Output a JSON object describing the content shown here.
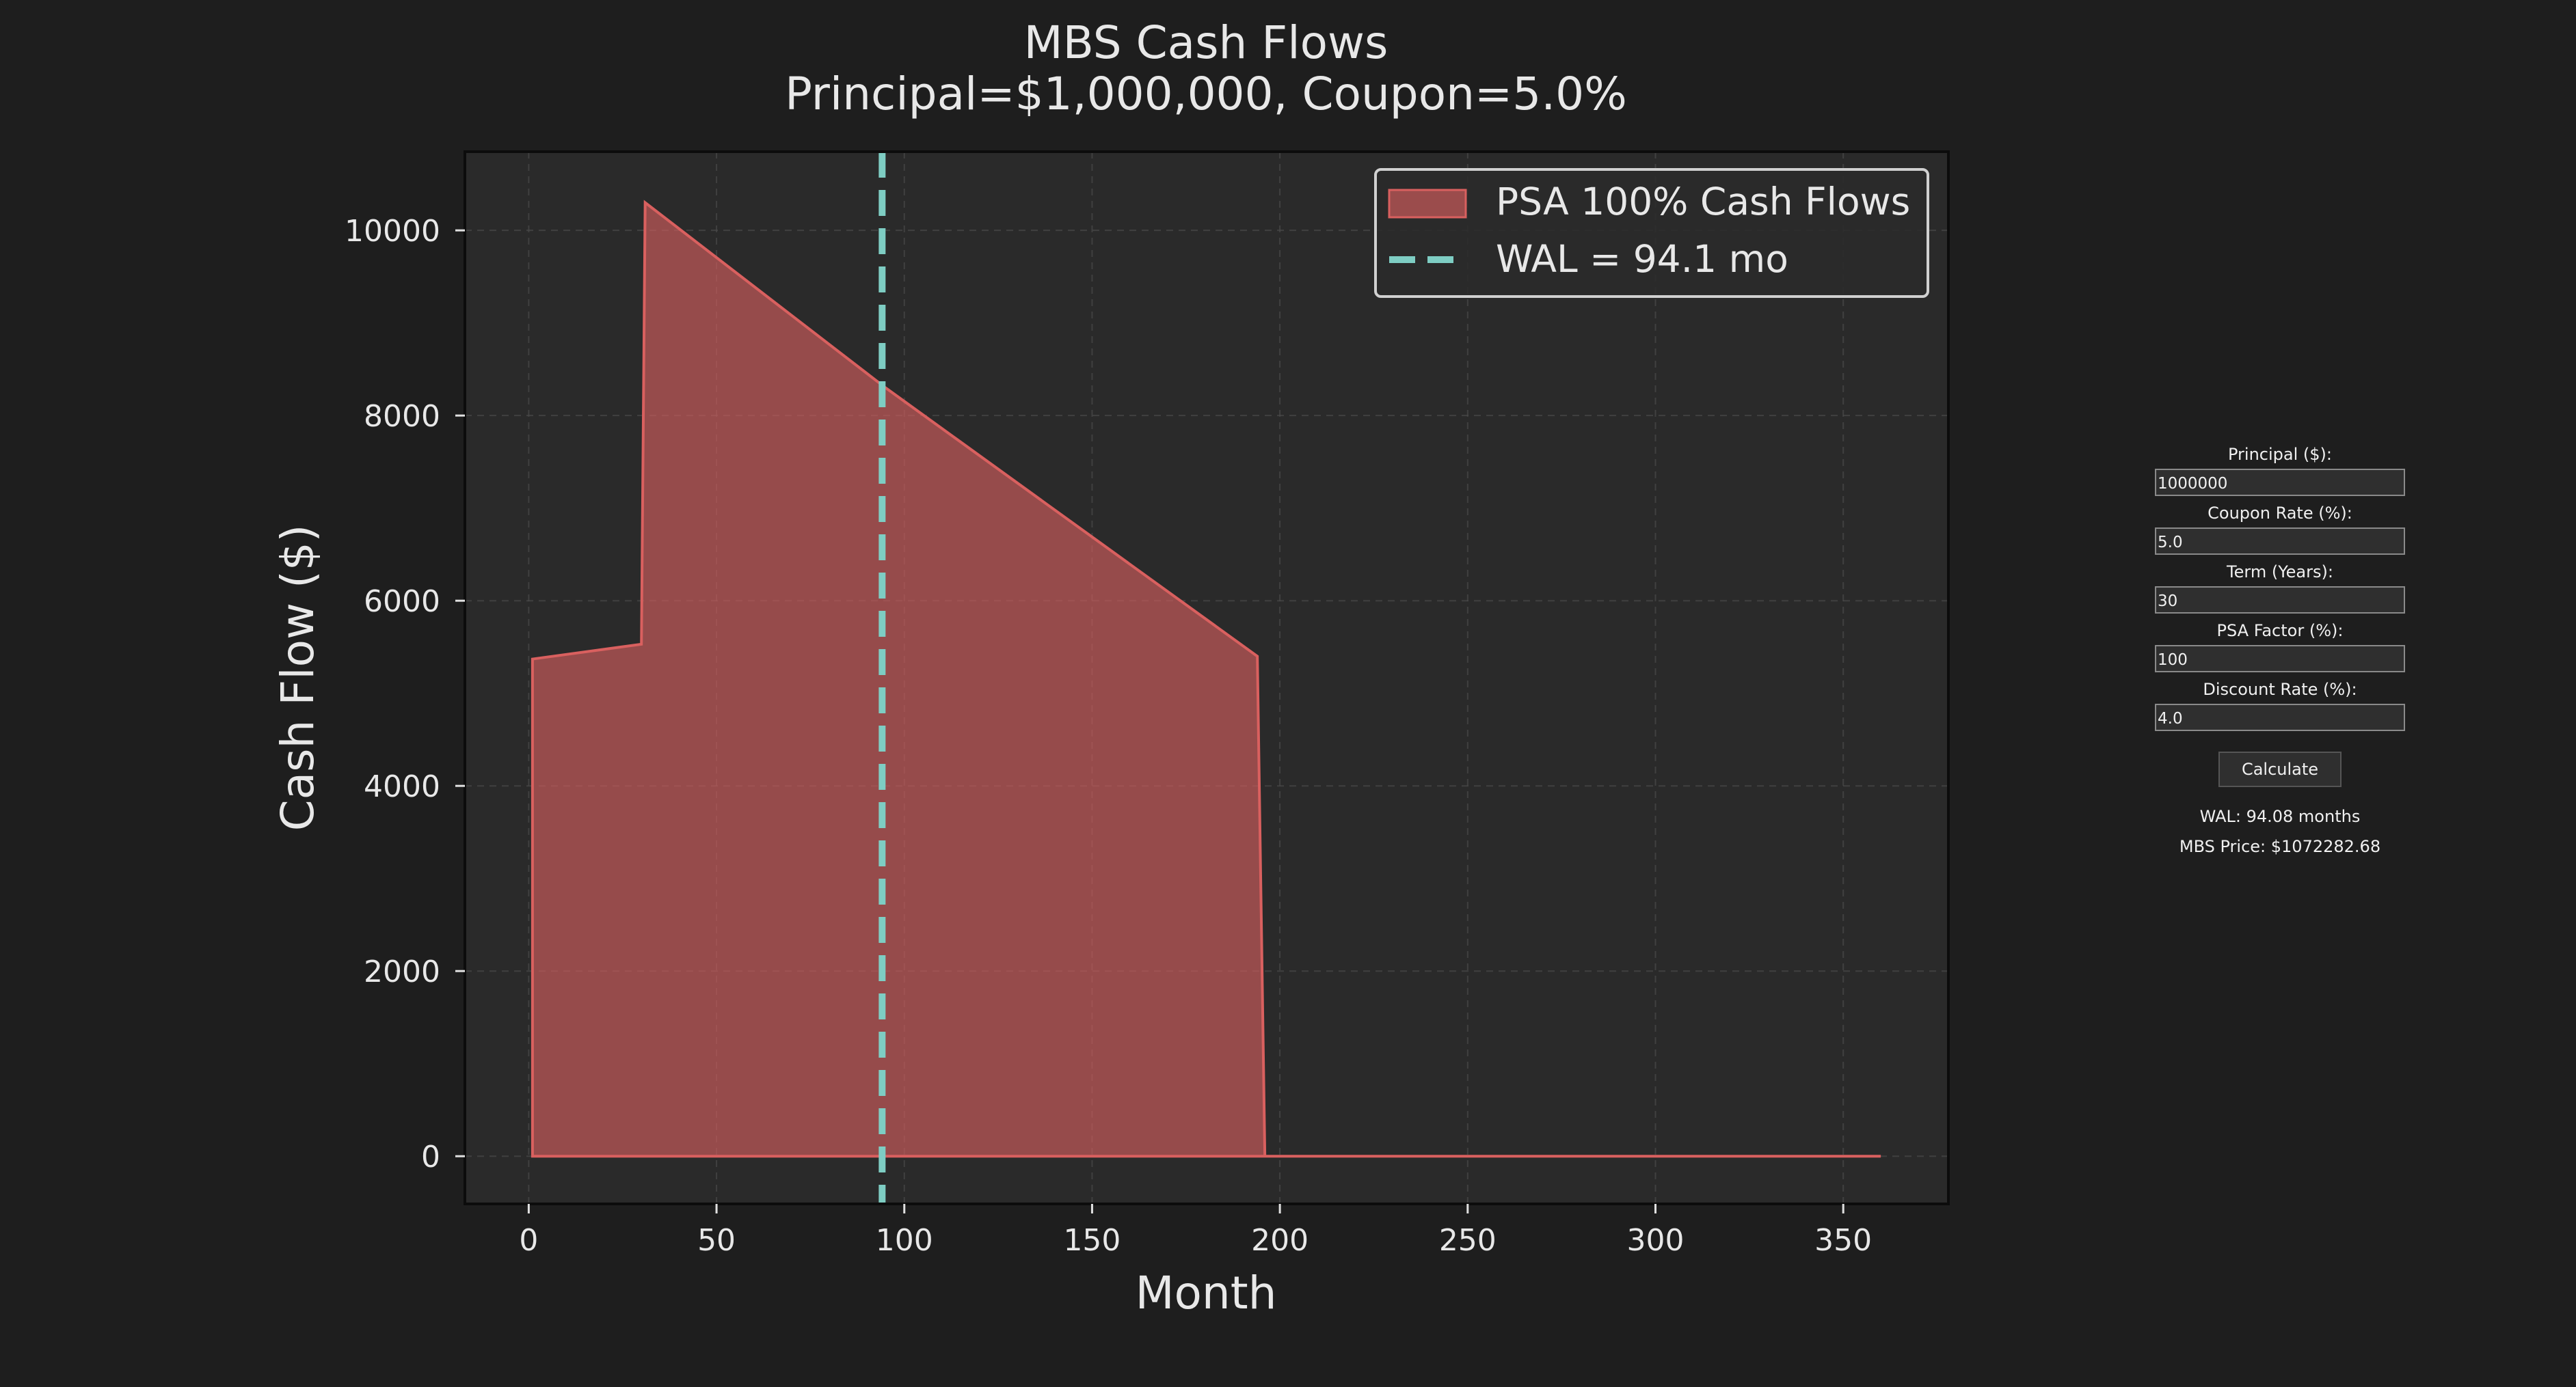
{
  "chart_data": {
    "type": "area",
    "title": "MBS Cash Flows",
    "subtitle": "Principal=$1,000,000, Coupon=5.0%",
    "xlabel": "Month",
    "ylabel": "Cash Flow ($)",
    "xlim": [
      -17,
      378
    ],
    "ylim": [
      -515,
      10850
    ],
    "xticks": [
      0,
      50,
      100,
      150,
      200,
      250,
      300,
      350
    ],
    "yticks": [
      0,
      2000,
      4000,
      6000,
      8000,
      10000
    ],
    "grid": true,
    "legend_position": "top-right",
    "series": [
      {
        "name": "PSA 100% Cash Flows",
        "kind": "filled-area",
        "color": "#d9605f",
        "x": [
          1,
          30,
          31,
          95,
          194,
          196,
          360
        ],
        "y": [
          5370,
          5530,
          10300,
          8300,
          5400,
          0,
          0
        ]
      }
    ],
    "reference_lines": [
      {
        "name": "WAL = 94.1 mo",
        "orientation": "vertical",
        "x": 94.1,
        "style": "dashed",
        "color": "#7ecdc3"
      }
    ]
  },
  "controls": {
    "principal": {
      "label": "Principal ($):",
      "value": "1000000"
    },
    "coupon": {
      "label": "Coupon Rate (%):",
      "value": "5.0"
    },
    "term": {
      "label": "Term (Years):",
      "value": "30"
    },
    "psa": {
      "label": "PSA Factor (%):",
      "value": "100"
    },
    "discount": {
      "label": "Discount Rate (%):",
      "value": "4.0"
    },
    "calculate_label": "Calculate"
  },
  "results": {
    "wal": "WAL: 94.08 months",
    "price": "MBS Price: $1072282.68"
  },
  "colors": {
    "background": "#1e1e1e",
    "plot_background": "#2a2a2a",
    "area_fill": "#d9605f",
    "wal_line": "#7ecdc3",
    "text": "#e8e8e8"
  }
}
